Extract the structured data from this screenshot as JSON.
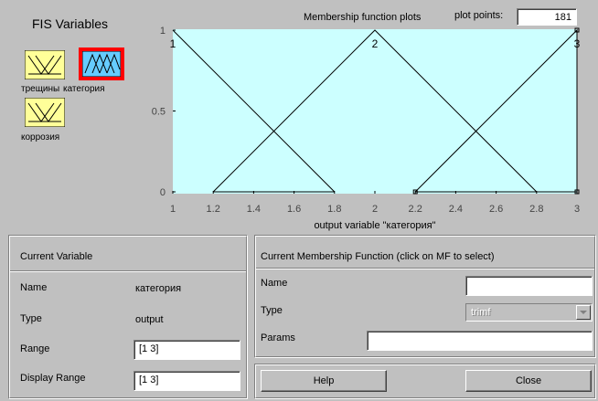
{
  "fis_variables": {
    "title": "FIS Variables",
    "variables": [
      {
        "name": "трещины",
        "selected": false
      },
      {
        "name": "категория",
        "selected": true
      },
      {
        "name": "коррозия",
        "selected": false
      }
    ]
  },
  "mf_plot": {
    "title": "Membership function plots",
    "plot_points_label": "plot points:",
    "plot_points_value": "181"
  },
  "chart_data": {
    "type": "line",
    "xlabel": "output variable \"категория\"",
    "xlim": [
      1,
      3
    ],
    "ylim": [
      0,
      1
    ],
    "x_ticks": [
      "1",
      "1.2",
      "1.4",
      "1.6",
      "1.8",
      "2",
      "2.2",
      "2.4",
      "2.6",
      "2.8",
      "3"
    ],
    "y_ticks": [
      "0",
      "0.5",
      "1"
    ],
    "series": [
      {
        "name": "1",
        "x": [
          1,
          1.8
        ],
        "y": [
          1,
          0
        ],
        "base": [
          1.2,
          1.8
        ]
      },
      {
        "name": "2",
        "x": [
          1.2,
          2,
          2.8
        ],
        "y": [
          0,
          1,
          0
        ]
      },
      {
        "name": "3",
        "x": [
          2.2,
          3,
          3
        ],
        "y": [
          0,
          1,
          0
        ]
      }
    ],
    "bg_color": "#ccffff"
  },
  "current_variable": {
    "header": "Current Variable",
    "name_label": "Name",
    "name_value": "категория",
    "type_label": "Type",
    "type_value": "output",
    "range_label": "Range",
    "range_value": "[1 3]",
    "display_range_label": "Display Range",
    "display_range_value": "[1 3]"
  },
  "current_mf": {
    "header": "Current Membership Function (click on MF to select)",
    "name_label": "Name",
    "name_value": "",
    "type_label": "Type",
    "type_value": "trimf",
    "params_label": "Params",
    "params_value": ""
  },
  "buttons": {
    "help": "Help",
    "close": "Close"
  }
}
